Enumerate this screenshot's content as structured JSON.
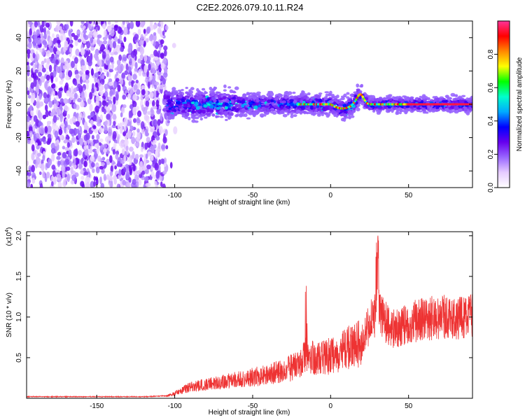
{
  "title": "C2E2.2026.079.10.11.R24",
  "chart_data": [
    {
      "type": "heatmap",
      "name": "spectrogram",
      "xlabel": "Height of straight line (km)",
      "ylabel": "Frequency (Hz)",
      "xlim": [
        -195,
        91
      ],
      "ylim": [
        -50,
        50
      ],
      "xticks": [
        -150,
        -100,
        -50,
        0,
        50
      ],
      "yticks": [
        -40,
        -20,
        0,
        20,
        40
      ],
      "colorbar": {
        "label": "Normalized spectral amplitude",
        "range": [
          0.0,
          1.0
        ],
        "ticks": [
          0.0,
          0.2,
          0.4,
          0.6,
          0.8
        ],
        "colormap": [
          "#ffffff",
          "#e6ccff",
          "#9966ff",
          "#6600ee",
          "#0000ff",
          "#00aaff",
          "#00ffcc",
          "#00ff00",
          "#ffff00",
          "#ff8800",
          "#ff0000",
          "#ff3399"
        ]
      },
      "regions": [
        {
          "description": "broadband noise",
          "x_range": [
            -195,
            -105
          ],
          "freq_range": [
            -50,
            48
          ],
          "amplitude": 0.05
        },
        {
          "description": "signal band",
          "x_range": [
            -105,
            91
          ],
          "freq_range": [
            -10,
            8
          ],
          "amplitude": 0.3
        },
        {
          "description": "bright trace",
          "x_range": [
            -20,
            91
          ],
          "freq_center": 0,
          "amplitude": 0.95
        }
      ]
    },
    {
      "type": "line",
      "name": "snr",
      "xlabel": "Height of straight line (km)",
      "ylabel": "SNR (10 * v/v)",
      "y_scale_note": "(x10^4)",
      "xlim": [
        -195,
        91
      ],
      "ylim": [
        0,
        2.05
      ],
      "xticks": [
        -150,
        -100,
        -50,
        0,
        50
      ],
      "yticks": [
        0.5,
        1.0,
        1.5,
        2.0
      ],
      "ytick_labels": [
        "0.5",
        "1.0",
        "1.5",
        "2.0"
      ],
      "series": [
        {
          "name": "SNR",
          "color": "#ee3333",
          "x": [
            -195,
            -180,
            -160,
            -140,
            -120,
            -105,
            -100,
            -95,
            -90,
            -80,
            -70,
            -60,
            -50,
            -40,
            -30,
            -20,
            -15,
            -10,
            0,
            10,
            20,
            25,
            30,
            35,
            40,
            50,
            60,
            70,
            80,
            91
          ],
          "y": [
            0.02,
            0.02,
            0.02,
            0.02,
            0.02,
            0.03,
            0.06,
            0.1,
            0.14,
            0.17,
            0.2,
            0.23,
            0.26,
            0.29,
            0.34,
            0.42,
            0.55,
            0.46,
            0.52,
            0.6,
            0.7,
            0.92,
            1.08,
            0.95,
            0.85,
            0.92,
            0.98,
            1.0,
            0.99,
            1.0
          ]
        }
      ]
    }
  ]
}
